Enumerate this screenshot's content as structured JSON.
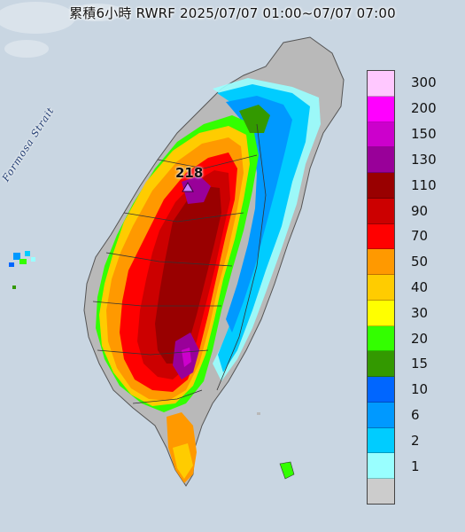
{
  "title": "累積6小時 RWRF 2025/07/07 01:00~07/07 07:00",
  "strait_label": "Formosa Strait",
  "max_marker": {
    "value": "218",
    "icon": "triangle-marker-icon",
    "color": "#c77dff"
  },
  "legend": {
    "items": [
      {
        "label": "300",
        "color": "#ffc8ff"
      },
      {
        "label": "200",
        "color": "#ff00ff"
      },
      {
        "label": "150",
        "color": "#cc00cc"
      },
      {
        "label": "130",
        "color": "#990099"
      },
      {
        "label": "110",
        "color": "#990000"
      },
      {
        "label": "90",
        "color": "#cc0000"
      },
      {
        "label": "70",
        "color": "#ff0000"
      },
      {
        "label": "50",
        "color": "#ff9900"
      },
      {
        "label": "40",
        "color": "#ffcc00"
      },
      {
        "label": "30",
        "color": "#ffff00"
      },
      {
        "label": "20",
        "color": "#33ff00"
      },
      {
        "label": "15",
        "color": "#339900"
      },
      {
        "label": "10",
        "color": "#0066ff"
      },
      {
        "label": "6",
        "color": "#0099ff"
      },
      {
        "label": "2",
        "color": "#00ccff"
      },
      {
        "label": "1",
        "color": "#99ffff"
      },
      {
        "label": "",
        "color": "#cccccc"
      }
    ]
  },
  "colors": {
    "sea": "#c9d6e2",
    "land_gray": "#b9b9b9"
  }
}
